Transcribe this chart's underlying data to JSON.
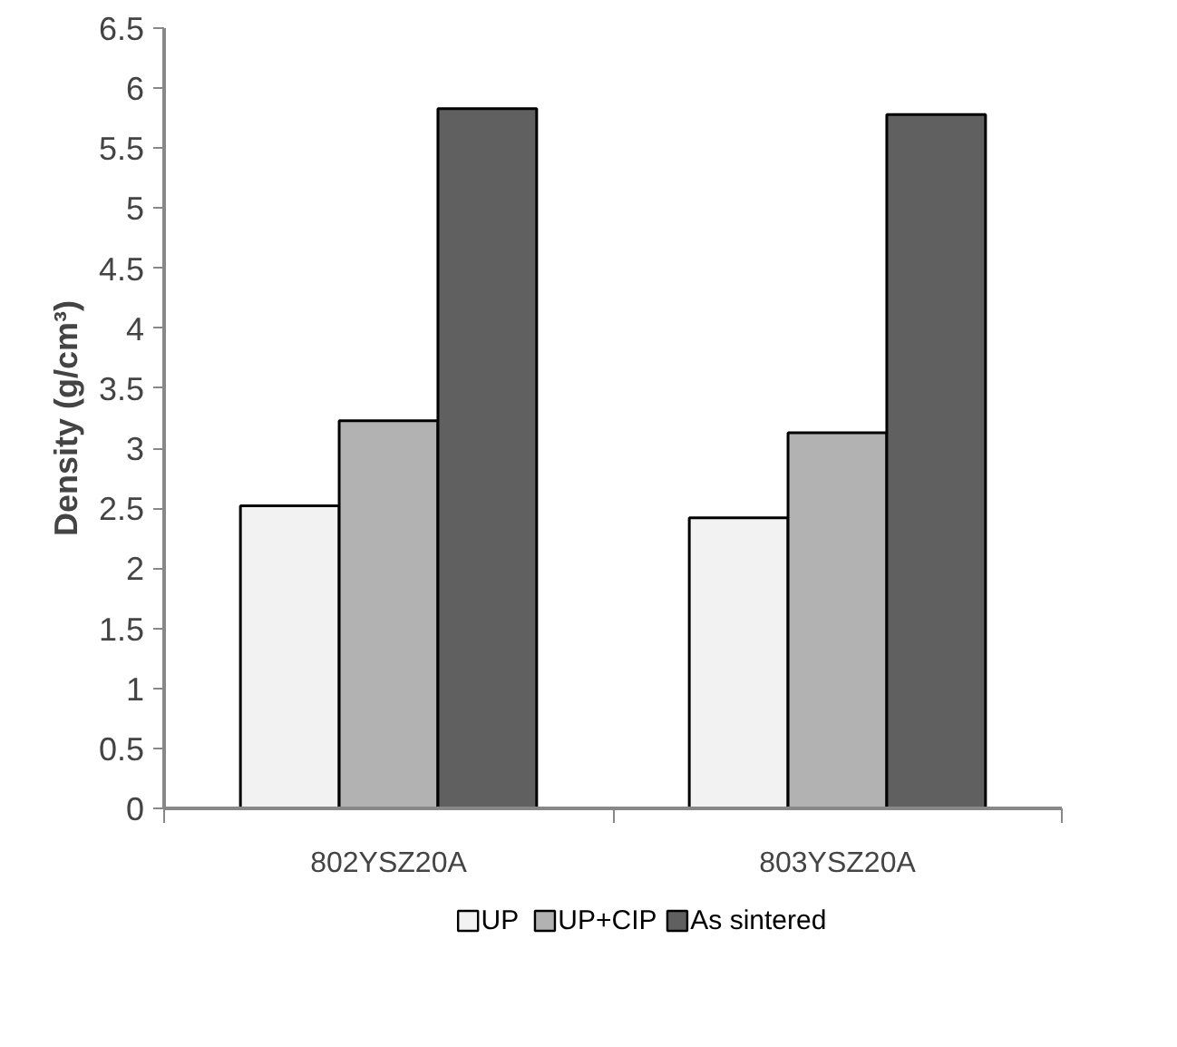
{
  "chart_data": {
    "type": "bar",
    "ylabel": "Density (g/cm³)",
    "categories": [
      "802YSZ20A",
      "803YSZ20A"
    ],
    "series": [
      {
        "name": "UP",
        "color": "#f2f2f2",
        "values": [
          2.52,
          2.42
        ]
      },
      {
        "name": "UP+CIP",
        "color": "#b2b2b2",
        "values": [
          3.23,
          3.13
        ]
      },
      {
        "name": "As sintered",
        "color": "#606060",
        "values": [
          5.83,
          5.78
        ]
      }
    ],
    "ylim": [
      0,
      6.5
    ],
    "yticks": [
      0,
      0.5,
      1,
      1.5,
      2,
      2.5,
      3,
      3.5,
      4,
      4.5,
      5,
      5.5,
      6,
      6.5
    ],
    "grid": false,
    "legend": "bottom"
  }
}
